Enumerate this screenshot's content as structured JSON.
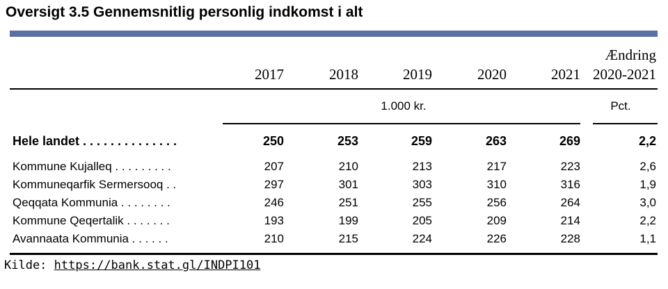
{
  "title": "Oversigt 3.5 Gennemsnitlig personlig indkomst i alt",
  "table": {
    "columns": [
      "2017",
      "2018",
      "2019",
      "2020",
      "2021"
    ],
    "change_header_line1": "Ændring",
    "change_header_line2": "2020-2021",
    "unit_values": "1.000 kr.",
    "unit_change": "Pct.",
    "total_row": {
      "label": "Hele landet . . . . . . . . . . . . . .",
      "values": [
        "250",
        "253",
        "259",
        "263",
        "269"
      ],
      "change": "2,2"
    },
    "rows": [
      {
        "label": "Kommune Kujalleq . . . . . . . . .",
        "values": [
          "207",
          "210",
          "213",
          "217",
          "223"
        ],
        "change": "2,6"
      },
      {
        "label": "Kommuneqarfik Sermersooq . .",
        "values": [
          "297",
          "301",
          "303",
          "310",
          "316"
        ],
        "change": "1,9"
      },
      {
        "label": "Qeqqata Kommunia . . . . . . . .",
        "values": [
          "246",
          "251",
          "255",
          "256",
          "264"
        ],
        "change": "3,0"
      },
      {
        "label": "Kommune Qeqertalik . . . . . . .",
        "values": [
          "193",
          "199",
          "205",
          "209",
          "214"
        ],
        "change": "2,2"
      },
      {
        "label": "Avannaata Kommunia . . . . . .",
        "values": [
          "210",
          "215",
          "224",
          "226",
          "228"
        ],
        "change": "1,1"
      }
    ]
  },
  "source": {
    "label": "Kilde:",
    "link": "https://bank.stat.gl/INDPI101"
  }
}
